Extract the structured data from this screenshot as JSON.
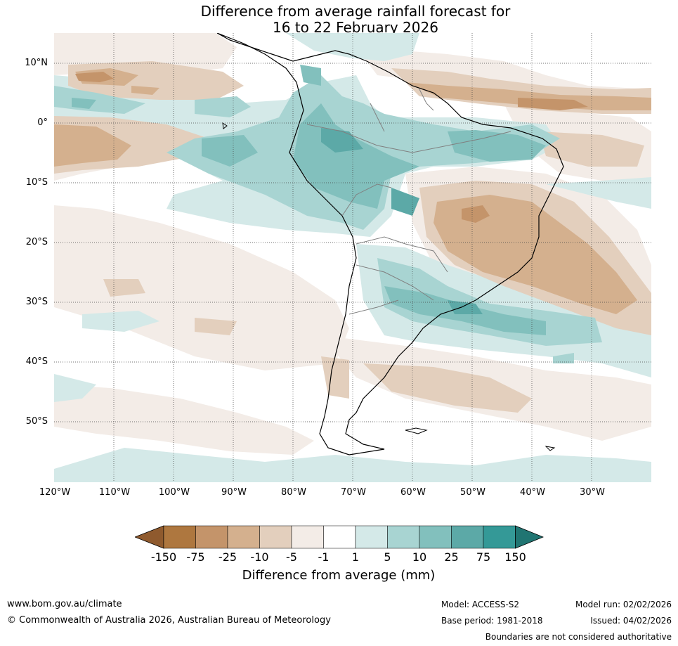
{
  "title": {
    "line1": "Difference from average rainfall forecast for",
    "line2": "16 to 22 February 2026"
  },
  "axes": {
    "lat_labels": [
      "10°N",
      "0°",
      "10°S",
      "20°S",
      "30°S",
      "40°S",
      "50°S"
    ],
    "lon_labels": [
      "120°W",
      "110°W",
      "100°W",
      "90°W",
      "80°W",
      "70°W",
      "60°W",
      "50°W",
      "40°W",
      "30°W"
    ]
  },
  "colorbar": {
    "label": "Difference from average (mm)",
    "ticks": [
      "-150",
      "-75",
      "-25",
      "-10",
      "-5",
      "-1",
      "1",
      "5",
      "10",
      "25",
      "75",
      "150"
    ],
    "colors": [
      "#8f5a2e",
      "#ae773f",
      "#c4946a",
      "#d4b08e",
      "#e3cfbd",
      "#f3ece7",
      "#ffffff",
      "#d4e9e8",
      "#a8d4d2",
      "#82c0bd",
      "#5ca9a7",
      "#349997",
      "#207572"
    ]
  },
  "footer": {
    "website": "www.bom.gov.au/climate",
    "copyright": "© Commonwealth of Australia 2026, Australian Bureau of Meteorology",
    "model": "Model: ACCESS-S2",
    "base_period": "Base period: 1981-2018",
    "model_run": "Model run: 02/02/2026",
    "issued": "Issued: 04/02/2026",
    "disclaimer": "Boundaries are not considered authoritative"
  }
}
